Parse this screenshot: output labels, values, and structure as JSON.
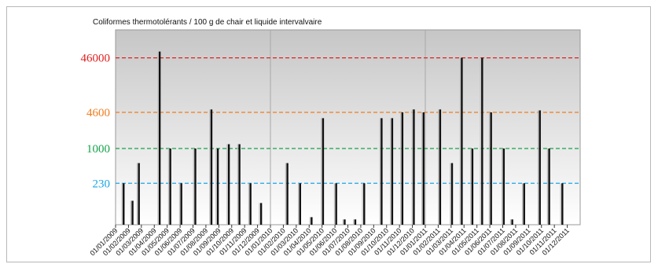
{
  "chart_data": {
    "type": "bar",
    "title": "Coliformes thermotolérants  / 100 g de chair et liquide intervalvaire",
    "xlabel": "",
    "ylabel": "",
    "y_scale": "log",
    "ylim": [
      40,
      150000
    ],
    "grid": false,
    "legend": "none",
    "categories": [
      "01/01/2009",
      "01/02/2009",
      "01/03/2009",
      "01/04/2009",
      "01/05/2009",
      "01/06/2009",
      "01/07/2009",
      "01/08/2009",
      "01/09/2009",
      "01/10/2009",
      "01/11/2009",
      "01/12/2009",
      "01/01/2010",
      "01/02/2010",
      "01/03/2010",
      "01/04/2010",
      "01/05/2010",
      "01/06/2010",
      "01/07/2010",
      "01/08/2010",
      "01/09/2010",
      "01/10/2010",
      "01/11/2010",
      "01/12/2010",
      "01/01/2011",
      "01/02/2011",
      "01/03/2011",
      "01/04/2011",
      "01/05/2011",
      "01/06/2011",
      "01/07/2011",
      "01/08/2011",
      "01/09/2011",
      "01/10/2011",
      "01/11/2011",
      "01/12/2011"
    ],
    "tick_labels": [
      "01/01/2009",
      "01/02/2009",
      "01/03/2009",
      "01/04/2009",
      "01/05/2009",
      "01/06/2009",
      "01/07/2009",
      "01/08/2009",
      "01/09/2009",
      "01/10/2009",
      "01/11/2009",
      "01/12/2009",
      "01/01/2010",
      "01/02/2010",
      "01/03/2010",
      "01/04/2010",
      "01/05/2010",
      "01/06/2010",
      "01/07/2010",
      "01/08/2010",
      "01/09/2010",
      "01/10/2010",
      "01/11/2010",
      "01/12/2010",
      "01/01/2011",
      "01/02/2011",
      "01/03/2011",
      "01/04/2011",
      "01/05/2011",
      "01/06/2011",
      "01/07/2011",
      "01/08/2011",
      "01/09/2011",
      "01/10/2011",
      "01/11/2011",
      "01/12/2011"
    ],
    "x": [
      "2009-01-20",
      "2009-02-10",
      "2009-02-25",
      "2009-04-15",
      "2009-05-10",
      "2009-06-05",
      "2009-07-08",
      "2009-08-15",
      "2009-08-30",
      "2009-09-25",
      "2009-10-20",
      "2009-11-15",
      "2009-12-10",
      "2010-02-10",
      "2010-03-12",
      "2010-04-08",
      "2010-05-05",
      "2010-06-05",
      "2010-06-25",
      "2010-07-20",
      "2010-08-10",
      "2010-09-20",
      "2010-10-15",
      "2010-11-08",
      "2010-12-05",
      "2010-12-28",
      "2011-02-05",
      "2011-03-05",
      "2011-03-28",
      "2011-04-22",
      "2011-05-15",
      "2011-06-05",
      "2011-07-05",
      "2011-07-25",
      "2011-08-22",
      "2011-09-28",
      "2011-10-20",
      "2011-11-20"
    ],
    "values": [
      230,
      110,
      540,
      60000,
      1000,
      230,
      1000,
      5200,
      1000,
      1200,
      1200,
      230,
      100,
      540,
      230,
      55,
      3600,
      230,
      50,
      50,
      230,
      3600,
      3600,
      4600,
      5200,
      4600,
      5200,
      540,
      46000,
      1000,
      46000,
      4600,
      1000,
      50,
      230,
      5000,
      1000,
      230
    ],
    "reference_lines": [
      {
        "label": "46000",
        "value": 46000,
        "color": "#e02020"
      },
      {
        "label": "4600",
        "value": 4600,
        "color": "#f07d1e"
      },
      {
        "label": "1000",
        "value": 1000,
        "color": "#16a34a"
      },
      {
        "label": "230",
        "value": 230,
        "color": "#1aa7e6"
      }
    ],
    "colors": {
      "bar": "#111111",
      "plot_top": "#c6c6c6",
      "plot_bottom": "#ffffff",
      "year_divider": "#a8a8a8"
    }
  }
}
